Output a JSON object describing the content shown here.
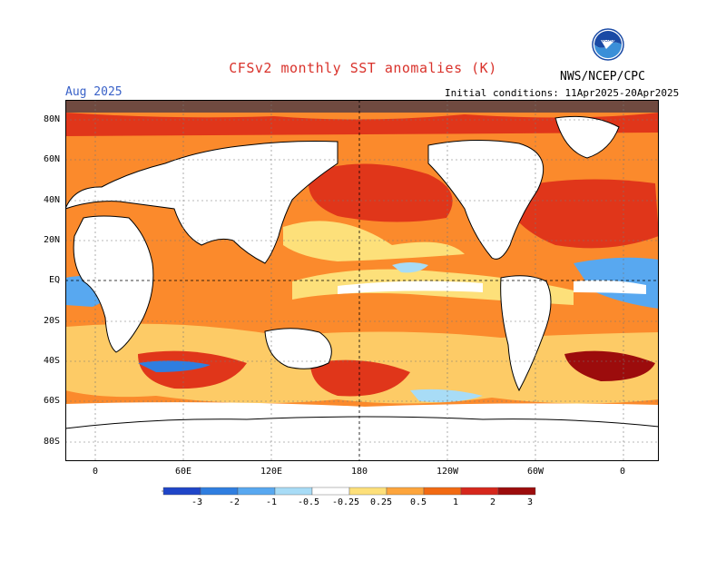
{
  "header": {
    "title": "CFSv2 monthly SST anomalies (K)",
    "month": "Aug 2025",
    "initial_conditions": "Initial conditions: 11Apr2025-20Apr2025",
    "agency": "NWS/NCEP/CPC",
    "logo_text": "NOAA"
  },
  "map": {
    "lat_labels": [
      "80N",
      "60N",
      "40N",
      "20N",
      "EQ",
      "20S",
      "40S",
      "60S",
      "80S"
    ],
    "lon_labels": [
      "0",
      "60E",
      "120E",
      "180",
      "120W",
      "60W",
      "0"
    ]
  },
  "legend": {
    "tick_labels": [
      "-3",
      "-2",
      "-1",
      "-0.5",
      "-0.25",
      "0.25",
      "0.5",
      "1",
      "2",
      "3"
    ],
    "colors": [
      "#1c0fa0",
      "#1f45c8",
      "#2f7ee0",
      "#58a8f0",
      "#a8dcf6",
      "#ffffff",
      "#fde07a",
      "#fda53c",
      "#f26a12",
      "#d6271c",
      "#9c0c0c",
      "#704a40"
    ]
  }
}
